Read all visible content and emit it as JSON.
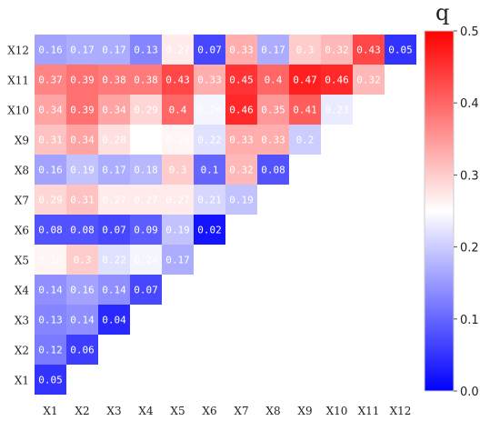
{
  "chart_data": {
    "type": "heatmap",
    "title": "",
    "xlabel": "",
    "ylabel": "",
    "x_labels": [
      "X1",
      "X2",
      "X3",
      "X4",
      "X5",
      "X6",
      "X7",
      "X8",
      "X9",
      "X10",
      "X11",
      "X12"
    ],
    "y_labels": [
      "X12",
      "X11",
      "X10",
      "X9",
      "X8",
      "X7",
      "X6",
      "X5",
      "X4",
      "X3",
      "X2",
      "X1"
    ],
    "rows": [
      [
        "0.16",
        "0.17",
        "0.17",
        "0.13",
        "0.27",
        "0.07",
        "0.33",
        "0.17",
        "0.3",
        "0.32",
        "0.43",
        "0.05"
      ],
      [
        "0.37",
        "0.39",
        "0.38",
        "0.38",
        "0.43",
        "0.33",
        "0.45",
        "0.4",
        "0.47",
        "0.46",
        "0.32"
      ],
      [
        "0.34",
        "0.39",
        "0.34",
        "0.29",
        "0.4",
        "0.24",
        "0.46",
        "0.35",
        "0.41",
        "0.23"
      ],
      [
        "0.31",
        "0.34",
        "0.28",
        "0.25",
        "0.26",
        "0.22",
        "0.33",
        "0.33",
        "0.2"
      ],
      [
        "0.16",
        "0.19",
        "0.17",
        "0.18",
        "0.3",
        "0.1",
        "0.32",
        "0.08"
      ],
      [
        "0.29",
        "0.31",
        "0.27",
        "0.27",
        "0.27",
        "0.21",
        "0.19"
      ],
      [
        "0.08",
        "0.08",
        "0.07",
        "0.09",
        "0.19",
        "0.02"
      ],
      [
        "0.26",
        "0.3",
        "0.22",
        "0.24",
        "0.17"
      ],
      [
        "0.14",
        "0.16",
        "0.14",
        "0.07"
      ],
      [
        "0.13",
        "0.14",
        "0.04"
      ],
      [
        "0.12",
        "0.06"
      ],
      [
        "0.05"
      ]
    ],
    "colorbar": {
      "title": "q",
      "min": 0.0,
      "max": 0.5,
      "ticks": [
        "0.0",
        "0.1",
        "0.2",
        "0.3",
        "0.4",
        "0.5"
      ],
      "colors": [
        "#0000ff",
        "#ffffff",
        "#ff0000"
      ],
      "position": "right"
    },
    "grid": false,
    "layout": "lower-triangle"
  }
}
